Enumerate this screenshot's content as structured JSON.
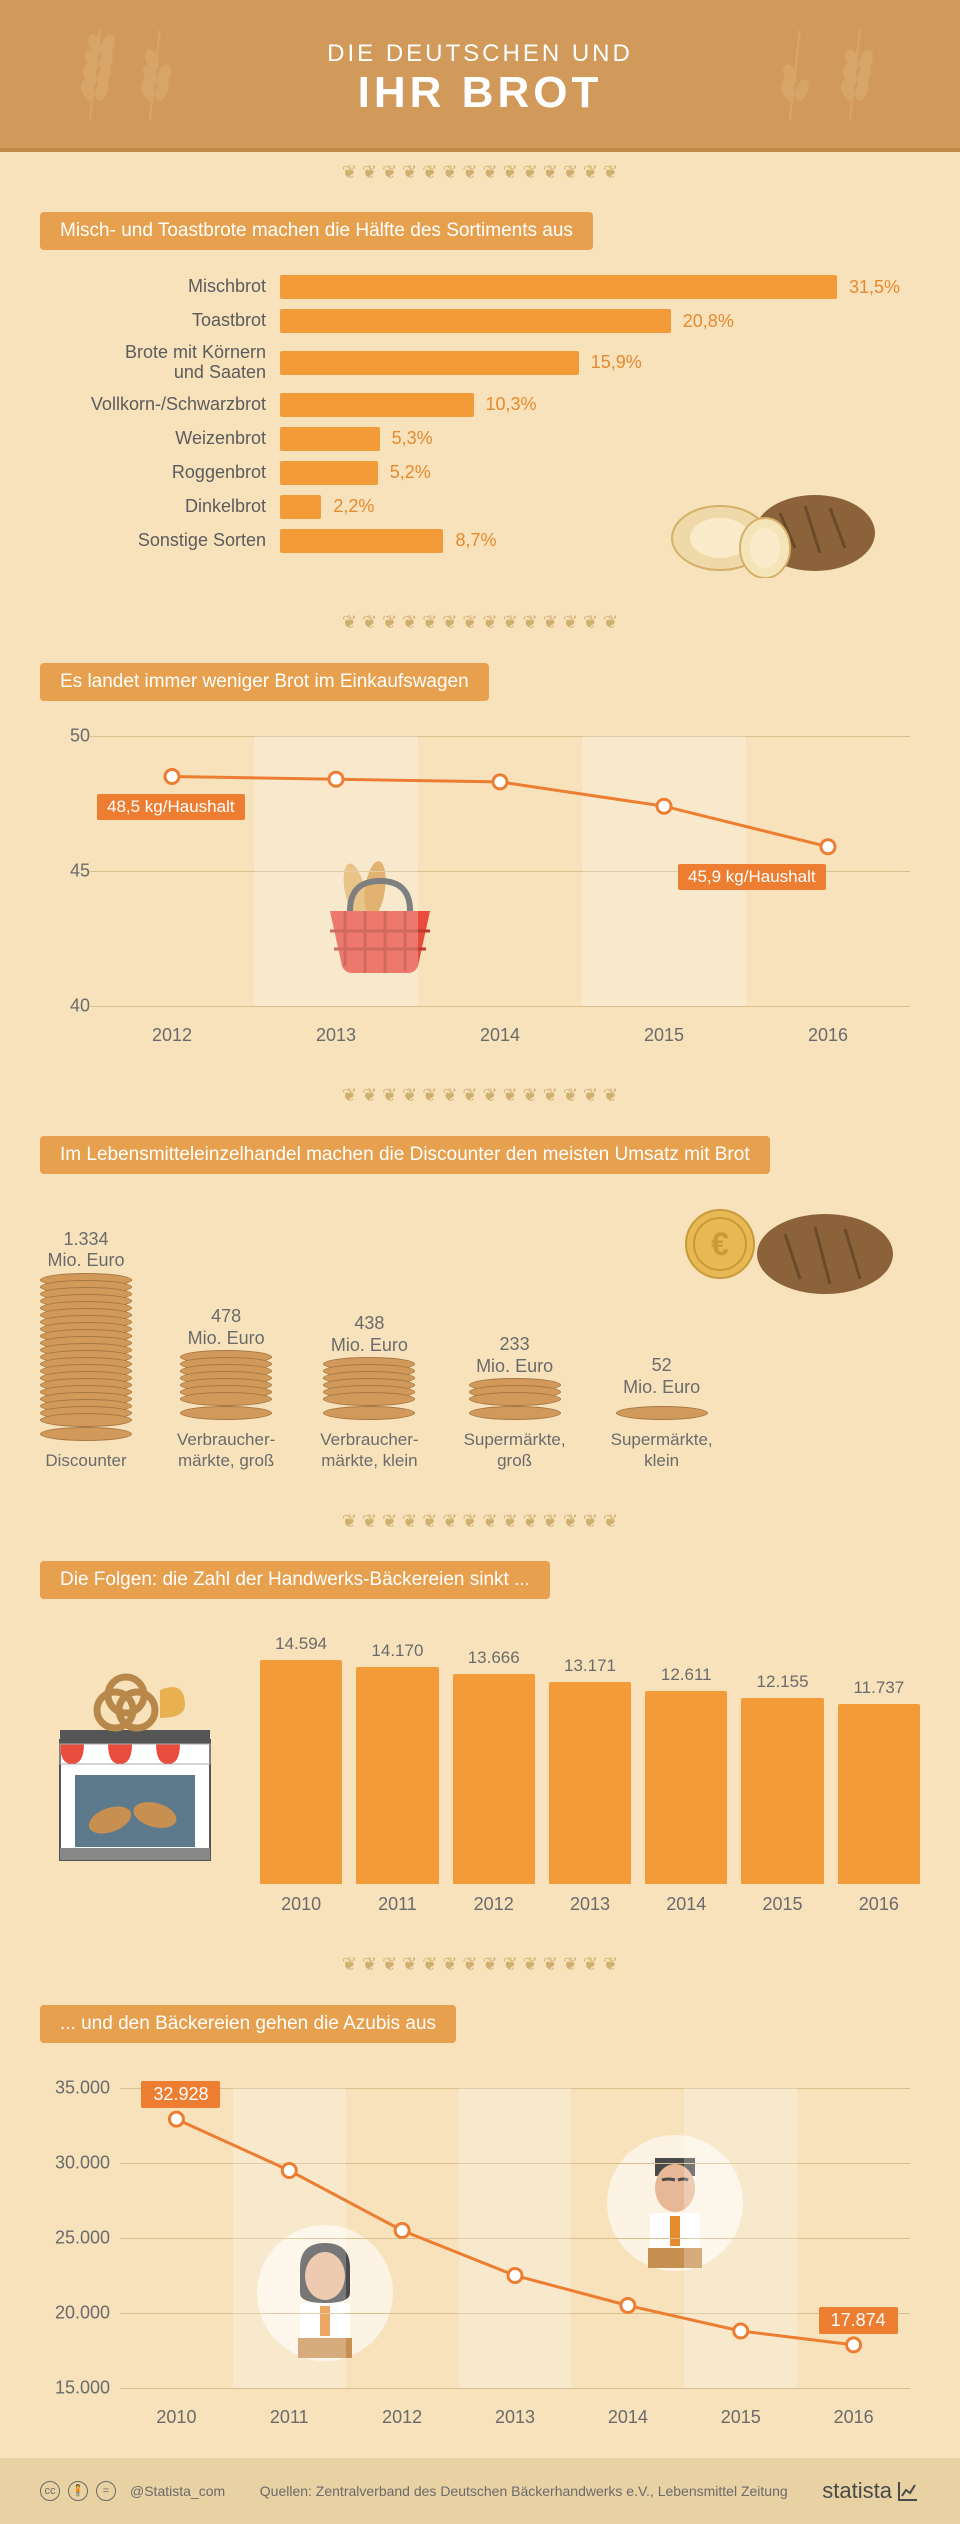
{
  "colors": {
    "bg": "#f7e2bb",
    "header_bg": "#d19a5b",
    "pill_bg": "#e6a04e",
    "bar_orange": "#f29b38",
    "accent_orange": "#ed7d31",
    "text_gray": "#6b6b6b",
    "grid": "#d9bf8e"
  },
  "header": {
    "line1": "DIE DEUTSCHEN UND",
    "line2": "IHR BROT"
  },
  "section1": {
    "title": "Misch- und Toastbrote machen die Hälfte des Sortiments aus",
    "type": "bar-horizontal",
    "max": 33,
    "bars": [
      {
        "label": "Mischbrot",
        "value": 31.5,
        "display": "31,5%"
      },
      {
        "label": "Toastbrot",
        "value": 20.8,
        "display": "20,8%"
      },
      {
        "label": "Brote mit Körnern\nund Saaten",
        "value": 15.9,
        "display": "15,9%"
      },
      {
        "label": "Vollkorn-/Schwarzbrot",
        "value": 10.3,
        "display": "10,3%"
      },
      {
        "label": "Weizenbrot",
        "value": 5.3,
        "display": "5,3%"
      },
      {
        "label": "Roggenbrot",
        "value": 5.2,
        "display": "5,2%"
      },
      {
        "label": "Dinkelbrot",
        "value": 2.2,
        "display": "2,2%"
      },
      {
        "label": "Sonstige Sorten",
        "value": 8.7,
        "display": "8,7%"
      }
    ]
  },
  "section2": {
    "title": "Es landet immer weniger Brot im Einkaufswagen",
    "type": "line",
    "ylim": [
      40,
      50
    ],
    "yticks": [
      40,
      45,
      50
    ],
    "xcats": [
      "2012",
      "2013",
      "2014",
      "2015",
      "2016"
    ],
    "values": [
      48.5,
      48.4,
      48.3,
      47.4,
      45.9
    ],
    "label_first": "48,5 kg/Haushalt",
    "label_last": "45,9 kg/Haushalt"
  },
  "section3": {
    "title": "Im Lebensmitteleinzelhandel machen die Discounter den meisten Umsatz mit Brot",
    "type": "coin-stack",
    "coin_unit": 60,
    "items": [
      {
        "label": "Discounter",
        "value": 1334,
        "display": "1.334\nMio. Euro"
      },
      {
        "label": "Verbraucher-\nmärkte, groß",
        "value": 478,
        "display": "478\nMio. Euro"
      },
      {
        "label": "Verbraucher-\nmärkte, klein",
        "value": 438,
        "display": "438\nMio. Euro"
      },
      {
        "label": "Supermärkte,\ngroß",
        "value": 233,
        "display": "233\nMio. Euro"
      },
      {
        "label": "Supermärkte,\nklein",
        "value": 52,
        "display": "52\nMio. Euro"
      }
    ]
  },
  "section4": {
    "title": "Die Folgen: die Zahl der Handwerks-Bäckereien sinkt ...",
    "type": "bar-vertical",
    "max": 15000,
    "xcats": [
      "2010",
      "2011",
      "2012",
      "2013",
      "2014",
      "2015",
      "2016"
    ],
    "values": [
      14594,
      14170,
      13666,
      13171,
      12611,
      12155,
      11737
    ],
    "display": [
      "14.594",
      "14.170",
      "13.666",
      "13.171",
      "12.611",
      "12.155",
      "11.737"
    ]
  },
  "section5": {
    "title": "... und den Bäckereien gehen die Azubis aus",
    "type": "line",
    "ylim": [
      15000,
      35000
    ],
    "yticks": [
      15000,
      20000,
      25000,
      30000,
      35000
    ],
    "ytick_display": [
      "15.000",
      "20.000",
      "25.000",
      "30.000",
      "35.000"
    ],
    "xcats": [
      "2010",
      "2011",
      "2012",
      "2013",
      "2014",
      "2015",
      "2016"
    ],
    "values": [
      32928,
      29500,
      25500,
      22500,
      20500,
      18800,
      17874
    ],
    "label_first": "32.928",
    "label_last": "17.874"
  },
  "footer": {
    "handle": "@Statista_com",
    "source": "Quellen: Zentralverband des Deutschen Bäckerhandwerks e.V., Lebensmittel Zeitung",
    "brand": "statista"
  }
}
